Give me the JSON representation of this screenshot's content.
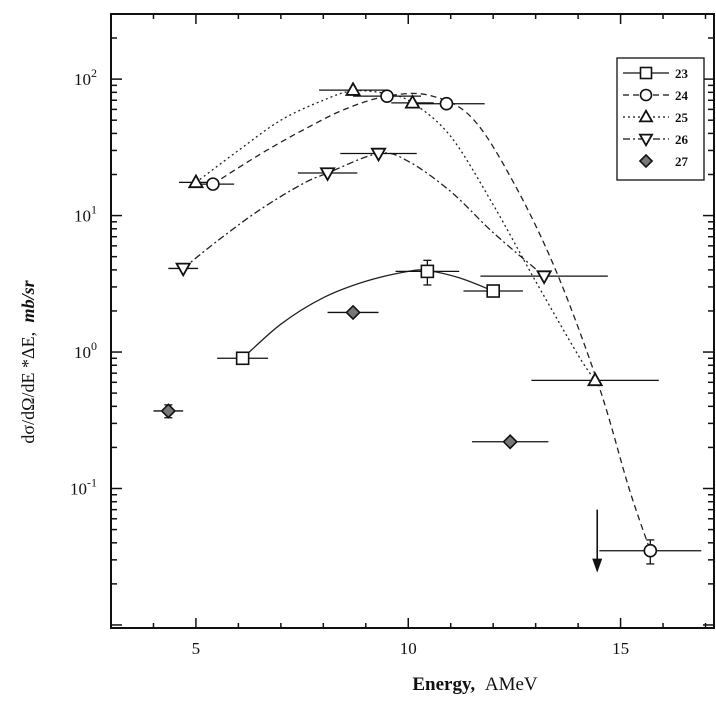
{
  "chart_data": {
    "type": "scatter",
    "x_label_bold": "Energy,",
    "x_label_unit": "AMeV",
    "y_label": "dσ/dΩ/dE *ΔE,",
    "y_label_unit": "mb/sr",
    "x_range": [
      3,
      17.2
    ],
    "y_range": [
      0.0095,
      300
    ],
    "y_scale": "log",
    "x_ticks": [
      5,
      10,
      15
    ],
    "y_ticks": [
      {
        "value": 0.1,
        "base": "10",
        "exp": "-1"
      },
      {
        "value": 1,
        "base": "10",
        "exp": "0"
      },
      {
        "value": 10,
        "base": "10",
        "exp": "1"
      },
      {
        "value": 100,
        "base": "10",
        "exp": "2"
      }
    ],
    "legend_position": "top-right",
    "series": [
      {
        "name": "23",
        "marker": "square",
        "line": "solid",
        "points": [
          {
            "x": 6.1,
            "y": 0.9,
            "xerr": 0.6,
            "yerr": 0
          },
          {
            "x": 10.45,
            "y": 3.9,
            "xerr": 0.75,
            "yerr": 0.8
          },
          {
            "x": 12.0,
            "y": 2.8,
            "xerr": 0.7,
            "yerr": 0.2
          }
        ],
        "curve": [
          [
            6.1,
            0.9
          ],
          [
            7.0,
            1.6
          ],
          [
            8.0,
            2.5
          ],
          [
            9.0,
            3.3
          ],
          [
            10.0,
            3.9
          ],
          [
            10.45,
            3.95
          ],
          [
            11.2,
            3.5
          ],
          [
            12.0,
            2.8
          ]
        ]
      },
      {
        "name": "24",
        "marker": "circle",
        "line": "dashed",
        "points": [
          {
            "x": 5.4,
            "y": 17,
            "xerr": 0.5,
            "yerr": 0
          },
          {
            "x": 9.5,
            "y": 75,
            "xerr": 0.8,
            "yerr": 0
          },
          {
            "x": 10.9,
            "y": 66,
            "xerr": 0.9,
            "yerr": 0
          },
          {
            "x": 15.7,
            "y": 0.035,
            "xerr": 1.2,
            "yerr": 0.007
          }
        ],
        "curve": [
          [
            5.4,
            17
          ],
          [
            6.5,
            28
          ],
          [
            7.5,
            42
          ],
          [
            8.5,
            60
          ],
          [
            9.5,
            75
          ],
          [
            10.5,
            76
          ],
          [
            11.5,
            52
          ],
          [
            12.5,
            17
          ],
          [
            13.5,
            3.8
          ],
          [
            14.5,
            0.55
          ],
          [
            15.2,
            0.1
          ],
          [
            15.7,
            0.035
          ]
        ]
      },
      {
        "name": "25",
        "marker": "triangle-up",
        "line": "dotted",
        "points": [
          {
            "x": 5.0,
            "y": 17.5,
            "xerr": 0.4,
            "yerr": 0
          },
          {
            "x": 8.7,
            "y": 83,
            "xerr": 0.8,
            "yerr": 0
          },
          {
            "x": 10.1,
            "y": 67,
            "xerr": 0.5,
            "yerr": 0
          },
          {
            "x": 14.4,
            "y": 0.62,
            "xerr": 1.5,
            "yerr": 0
          }
        ],
        "curve": [
          [
            5.0,
            17.5
          ],
          [
            6.0,
            30
          ],
          [
            7.0,
            50
          ],
          [
            8.0,
            70
          ],
          [
            8.7,
            82
          ],
          [
            9.5,
            78
          ],
          [
            10.1,
            67
          ],
          [
            11.0,
            38
          ],
          [
            12.0,
            12
          ],
          [
            13.0,
            3.3
          ],
          [
            14.0,
            0.95
          ],
          [
            14.4,
            0.62
          ]
        ]
      },
      {
        "name": "26",
        "marker": "triangle-down",
        "line": "dash-dot",
        "points": [
          {
            "x": 4.7,
            "y": 4.1,
            "xerr": 0.35,
            "yerr": 0
          },
          {
            "x": 8.1,
            "y": 20.5,
            "xerr": 0.7,
            "yerr": 0
          },
          {
            "x": 9.3,
            "y": 28.5,
            "xerr": 0.9,
            "yerr": 0
          },
          {
            "x": 13.2,
            "y": 3.6,
            "xerr": 1.5,
            "yerr": 0
          }
        ],
        "curve": [
          [
            4.7,
            4.1
          ],
          [
            5.5,
            6.5
          ],
          [
            6.5,
            11
          ],
          [
            7.5,
            17
          ],
          [
            8.1,
            20.5
          ],
          [
            9.3,
            28.5
          ],
          [
            10.0,
            25
          ],
          [
            11.0,
            15
          ],
          [
            12.0,
            7.5
          ],
          [
            13.2,
            3.6
          ]
        ]
      },
      {
        "name": "27",
        "marker": "diamond",
        "line": "none",
        "points": [
          {
            "x": 4.35,
            "y": 0.37,
            "xerr": 0.35,
            "yerr": 0.04
          },
          {
            "x": 8.7,
            "y": 1.95,
            "xerr": 0.6,
            "yerr": 0
          },
          {
            "x": 12.4,
            "y": 0.22,
            "xerr": 0.9,
            "yerr": 0
          }
        ]
      }
    ],
    "annotations": [
      {
        "type": "upper-limit-arrow",
        "x": 14.45,
        "from_y": 0.07,
        "to_y": 0.025
      }
    ]
  }
}
